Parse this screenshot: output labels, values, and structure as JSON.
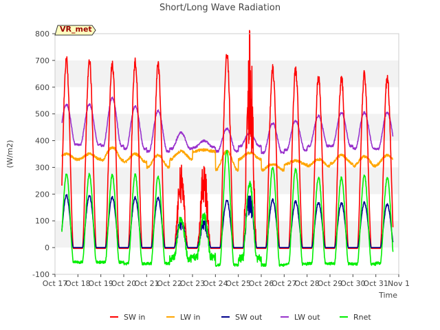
{
  "chart_data": {
    "type": "line",
    "title": "Short/Long Wave Radiation",
    "xlabel": "Time",
    "ylabel": "(W/m2)",
    "station_label": "VR_met",
    "ylim": [
      -100,
      800
    ],
    "y_ticks": [
      -100,
      0,
      100,
      200,
      300,
      400,
      500,
      600,
      700,
      800
    ],
    "xlim": [
      0,
      15
    ],
    "x_ticks": [
      0,
      1,
      2,
      3,
      4,
      5,
      6,
      7,
      8,
      9,
      10,
      11,
      12,
      13,
      14,
      15
    ],
    "x_tick_labels": [
      "Oct 17",
      "Oct 18",
      "Oct 19",
      "Oct 20",
      "Oct 21",
      "Oct 22",
      "Oct 23",
      "Oct 24",
      "Oct 25",
      "Oct 26",
      "Oct 27",
      "Oct 28",
      "Oct 29",
      "Oct 30",
      "Oct 31",
      "Nov 1"
    ],
    "grid": "horizontal bands",
    "legend_position": "bottom",
    "data_start": 0.3,
    "data_end": 14.75,
    "days": [
      {
        "day": 1,
        "sw_in": 705,
        "sw_out": 195,
        "lw_in_day": 350,
        "lw_in_night": 330,
        "lw_out_peak": 535,
        "lw_out_night": 385,
        "rnet_peak": 275,
        "rnet_night": -55
      },
      {
        "day": 2,
        "sw_in": 695,
        "sw_out": 190,
        "lw_in_day": 375,
        "lw_in_night": 325,
        "lw_out_peak": 560,
        "lw_out_night": 380,
        "rnet_peak": 272,
        "rnet_night": -55
      },
      {
        "day": 3,
        "sw_in": 700,
        "sw_out": 188,
        "lw_in_day": 350,
        "lw_in_night": 320,
        "lw_out_peak": 528,
        "lw_out_night": 370,
        "rnet_peak": 272,
        "rnet_night": -60
      },
      {
        "day": 4,
        "sw_in": 685,
        "sw_out": 185,
        "lw_in_day": 345,
        "lw_in_night": 300,
        "lw_out_peak": 512,
        "lw_out_night": 360,
        "rnet_peak": 265,
        "rnet_night": -60
      },
      {
        "day": 5,
        "sw_in": 240,
        "sw_out": 85,
        "lw_in_day": 360,
        "lw_in_night": 330,
        "lw_out_peak": 430,
        "lw_out_night": 370,
        "rnet_peak": 110,
        "rnet_night": -40
      },
      {
        "day": 6,
        "sw_in": 250,
        "sw_out": 90,
        "lw_in_day": 365,
        "lw_in_night": 360,
        "lw_out_peak": 400,
        "lw_out_night": 375,
        "rnet_peak": 120,
        "rnet_night": -35
      },
      {
        "day": 7,
        "sw_in": 730,
        "sw_out": 178,
        "lw_in_day": 360,
        "lw_in_night": 290,
        "lw_out_peak": 445,
        "lw_out_night": 360,
        "rnet_peak": 360,
        "rnet_night": -65
      },
      {
        "day": 8,
        "sw_in": 620,
        "sw_out": 175,
        "lw_in_day": 355,
        "lw_in_night": 330,
        "lw_out_peak": 430,
        "lw_out_night": 380,
        "rnet_peak": 245,
        "rnet_night": -40
      },
      {
        "day": 9,
        "sw_in": 670,
        "sw_out": 178,
        "lw_in_day": 312,
        "lw_in_night": 290,
        "lw_out_peak": 465,
        "lw_out_night": 355,
        "rnet_peak": 300,
        "rnet_night": -65
      },
      {
        "day": 10,
        "sw_in": 665,
        "sw_out": 172,
        "lw_in_day": 325,
        "lw_in_night": 310,
        "lw_out_peak": 475,
        "lw_out_night": 365,
        "rnet_peak": 292,
        "rnet_night": -62
      },
      {
        "day": 11,
        "sw_in": 642,
        "sw_out": 168,
        "lw_in_day": 330,
        "lw_in_night": 305,
        "lw_out_peak": 492,
        "lw_out_night": 380,
        "rnet_peak": 262,
        "rnet_night": -60
      },
      {
        "day": 12,
        "sw_in": 640,
        "sw_out": 167,
        "lw_in_day": 345,
        "lw_in_night": 315,
        "lw_out_peak": 505,
        "lw_out_night": 380,
        "rnet_peak": 262,
        "rnet_night": -60
      },
      {
        "day": 13,
        "sw_in": 650,
        "sw_out": 168,
        "lw_in_day": 340,
        "lw_in_night": 305,
        "lw_out_peak": 505,
        "lw_out_night": 370,
        "rnet_peak": 270,
        "rnet_night": -62
      },
      {
        "day": 14,
        "sw_in": 638,
        "sw_out": 162,
        "lw_in_day": 345,
        "lw_in_night": 310,
        "lw_out_peak": 505,
        "lw_out_night": 368,
        "rnet_peak": 262,
        "rnet_night": -58
      }
    ],
    "series": [
      {
        "name": "SW in",
        "color": "#ff0000"
      },
      {
        "name": "LW in",
        "color": "#ffa500"
      },
      {
        "name": "SW out",
        "color": "#00008b"
      },
      {
        "name": "LW out",
        "color": "#9932cc"
      },
      {
        "name": "Rnet",
        "color": "#00ee00"
      }
    ]
  }
}
